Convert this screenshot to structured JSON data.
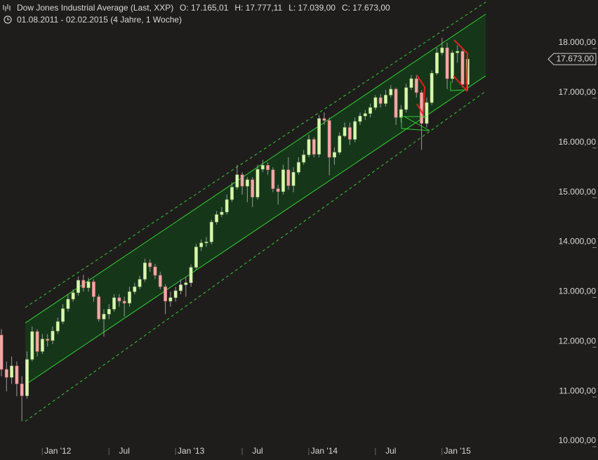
{
  "chart_data": {
    "type": "candlestick",
    "title": "Dow Jones Industrial Average (Last, XXP)",
    "ohlc_labels": [
      "O: 17.165,01",
      "H: 17.777,11",
      "L: 17.039,00",
      "C: 17.673,00"
    ],
    "subtitle": "01.08.2011 - 02.02.2015 (4 Jahre, 1 Woche)",
    "categories": [
      null,
      null,
      null,
      null,
      null,
      null,
      null,
      null,
      null,
      null,
      null,
      "Jan '12",
      null,
      null,
      null,
      null,
      null,
      null,
      null,
      null,
      null,
      null,
      null,
      null,
      "Jul",
      null,
      null,
      null,
      null,
      null,
      null,
      null,
      null,
      null,
      null,
      null,
      null,
      "Jan '13",
      null,
      null,
      null,
      null,
      null,
      null,
      null,
      null,
      null,
      null,
      null,
      null,
      "Jul",
      null,
      null,
      null,
      null,
      null,
      null,
      null,
      null,
      null,
      null,
      null,
      null,
      "Jan '14",
      null,
      null,
      null,
      null,
      null,
      null,
      null,
      null,
      null,
      null,
      null,
      null,
      "Jul",
      null,
      null,
      null,
      null,
      null,
      null,
      null,
      null,
      null,
      null,
      null,
      null,
      "Jan '15",
      null,
      null
    ],
    "open": [
      12130,
      11440,
      11280,
      11510,
      11150,
      10910,
      11640,
      12200,
      11800,
      12050,
      12020,
      12210,
      12400,
      12660,
      12850,
      12980,
      13230,
      13080,
      13200,
      12900,
      12450,
      12550,
      12650,
      12880,
      12810,
      12770,
      13000,
      13100,
      13250,
      13580,
      13500,
      13330,
      13100,
      12810,
      12880,
      13020,
      13140,
      13180,
      13490,
      13900,
      13980,
      14000,
      14400,
      14550,
      14600,
      14850,
      15100,
      15350,
      15120,
      15250,
      14900,
      15460,
      15540,
      15450,
      15070,
      15010,
      15450,
      15130,
      15400,
      15600,
      15750,
      16060,
      15760,
      16480,
      16440,
      15700,
      15800,
      16130,
      16300,
      16060,
      16420,
      16530,
      16580,
      16700,
      16900,
      16780,
      16950,
      17070,
      16500,
      16660,
      17100,
      17280,
      17000,
      16380,
      16800,
      17390,
      17800,
      17900,
      17280,
      17800,
      17830,
      17165
    ],
    "high": [
      12250,
      11600,
      11700,
      11600,
      11300,
      11800,
      12300,
      12250,
      12150,
      12150,
      12300,
      12480,
      12750,
      12950,
      13050,
      13300,
      13340,
      13280,
      13250,
      12950,
      12650,
      12750,
      12950,
      12950,
      12900,
      13100,
      13180,
      13320,
      13660,
      13650,
      13560,
      13400,
      13150,
      13000,
      13100,
      13250,
      13300,
      13550,
      13960,
      14050,
      14100,
      14450,
      14620,
      14700,
      14950,
      15200,
      15550,
      15400,
      15300,
      15300,
      15550,
      15650,
      15600,
      15500,
      15150,
      15550,
      15700,
      15500,
      15700,
      15850,
      16150,
      16100,
      16550,
      16600,
      16500,
      15900,
      16200,
      16400,
      16400,
      16500,
      16600,
      16650,
      16780,
      16950,
      16970,
      17050,
      17150,
      17100,
      16750,
      17180,
      17350,
      17350,
      17050,
      16900,
      17450,
      17900,
      18100,
      18000,
      17850,
      17950,
      17900,
      17777
    ],
    "low": [
      11300,
      11000,
      11150,
      10900,
      10400,
      10850,
      11600,
      11700,
      11750,
      11900,
      11950,
      12150,
      12350,
      12600,
      12800,
      12920,
      13000,
      13000,
      12800,
      12400,
      12100,
      12450,
      12600,
      12700,
      12500,
      12700,
      12950,
      13050,
      13200,
      13400,
      13250,
      13050,
      12550,
      12700,
      12800,
      12950,
      12900,
      13100,
      13450,
      13820,
      13900,
      13950,
      14350,
      14500,
      14550,
      14800,
      15050,
      14950,
      14800,
      14700,
      14850,
      15400,
      15350,
      15000,
      14750,
      14950,
      15050,
      15000,
      15350,
      15550,
      15700,
      15700,
      15700,
      16350,
      15340,
      15550,
      15750,
      16100,
      15950,
      16000,
      16350,
      16450,
      16500,
      16650,
      16700,
      16720,
      16900,
      16350,
      16400,
      16600,
      17050,
      16900,
      15850,
      16300,
      16750,
      17350,
      17750,
      17070,
      17200,
      17600,
      17100,
      17039
    ],
    "close": [
      11440,
      11280,
      11510,
      11150,
      10910,
      11640,
      12200,
      11800,
      12050,
      12020,
      12210,
      12400,
      12660,
      12850,
      12980,
      13230,
      13080,
      13200,
      12900,
      12450,
      12550,
      12650,
      12880,
      12810,
      12770,
      13000,
      13100,
      13250,
      13580,
      13500,
      13330,
      13100,
      12810,
      12880,
      13020,
      13140,
      13180,
      13490,
      13900,
      13980,
      14000,
      14400,
      14550,
      14600,
      14850,
      15100,
      15350,
      15120,
      15250,
      14900,
      15460,
      15540,
      15450,
      15070,
      15010,
      15450,
      15130,
      15400,
      15600,
      15750,
      16060,
      15760,
      16480,
      16440,
      15700,
      15800,
      16130,
      16300,
      16060,
      16420,
      16530,
      16580,
      16700,
      16900,
      16780,
      16950,
      17070,
      16500,
      16660,
      17100,
      17280,
      17000,
      16380,
      16800,
      17390,
      17800,
      17900,
      17280,
      17800,
      17830,
      17165,
      17673
    ],
    "up_color": "#dcf5b0",
    "down_color": "#f2a8a8",
    "channel": {
      "upper": [
        12372,
        18578
      ],
      "lower": [
        11131,
        17337
      ],
      "outer_upper": [
        12683,
        18818
      ],
      "outer_lower": [
        10398,
        17027
      ]
    },
    "channel_color": "#2fd02f",
    "last": {
      "value": 17673,
      "label": "17.673,00"
    },
    "ylim": [
      9620,
      18860
    ],
    "yticks": [
      {
        "value": 10000,
        "label": "10.000,00"
      },
      {
        "value": 11000,
        "label": "11.000,00"
      },
      {
        "value": 12000,
        "label": "12.000,00"
      },
      {
        "value": 13000,
        "label": "13.000,00"
      },
      {
        "value": 14000,
        "label": "14.000,00"
      },
      {
        "value": 15000,
        "label": "15.000,00"
      },
      {
        "value": 16000,
        "label": "16.000,00"
      },
      {
        "value": 17000,
        "label": "17.000,00"
      },
      {
        "value": 18000,
        "label": "18.000,00"
      }
    ]
  }
}
